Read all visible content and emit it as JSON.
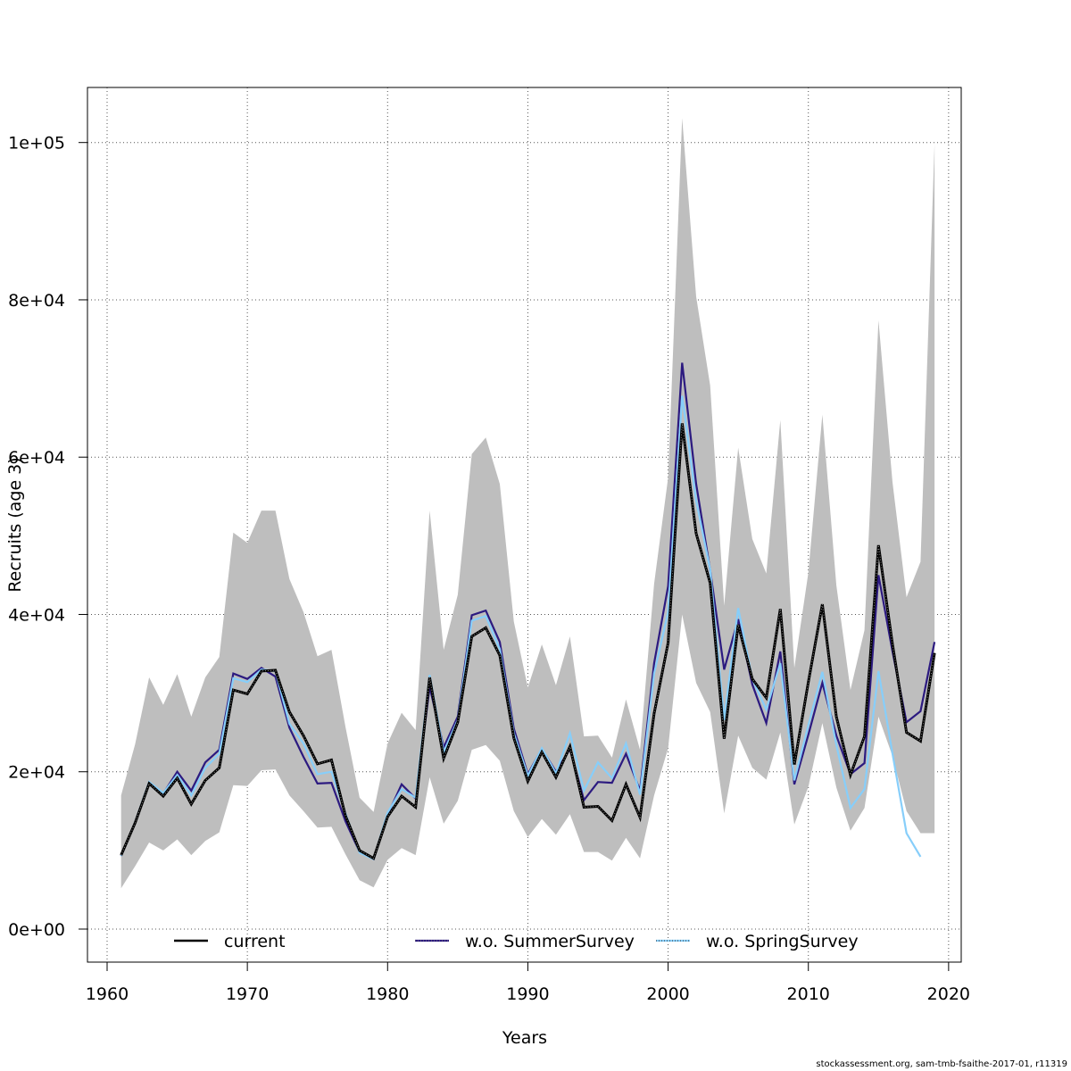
{
  "chart_data": {
    "type": "line",
    "xlabel": "Years",
    "ylabel": "Recruits (age 3)",
    "xlim": [
      1958.6,
      2020.9
    ],
    "ylim": [
      -4200,
      107000
    ],
    "x_ticks": [
      1960,
      1970,
      1980,
      1990,
      2000,
      2010,
      2020
    ],
    "x_tick_labels": [
      "1960",
      "1970",
      "1980",
      "1990",
      "2000",
      "2010",
      "2020"
    ],
    "y_ticks": [
      0,
      20000,
      40000,
      60000,
      80000,
      100000
    ],
    "y_tick_labels": [
      "0e+00",
      "2e+04",
      "4e+04",
      "6e+04",
      "8e+04",
      "1e+05"
    ],
    "grid": true,
    "legend_position": "bottom",
    "band_color": "#bebebe",
    "confidence_band": {
      "x": [
        1961,
        1962,
        1963,
        1964,
        1965,
        1966,
        1967,
        1968,
        1969,
        1970,
        1971,
        1972,
        1973,
        1974,
        1975,
        1976,
        1977,
        1978,
        1979,
        1980,
        1981,
        1982,
        1983,
        1984,
        1985,
        1986,
        1987,
        1988,
        1989,
        1990,
        1991,
        1992,
        1993,
        1994,
        1995,
        1996,
        1997,
        1998,
        1999,
        2000,
        2001,
        2002,
        2003,
        2004,
        2005,
        2006,
        2007,
        2008,
        2009,
        2010,
        2011,
        2012,
        2013,
        2014,
        2015,
        2016,
        2017,
        2018,
        2019
      ],
      "lower": [
        5200,
        8000,
        11000,
        10000,
        11400,
        9400,
        11200,
        12300,
        18300,
        18200,
        20200,
        20300,
        17000,
        15000,
        12900,
        13000,
        9500,
        6200,
        5300,
        8800,
        10300,
        9400,
        19300,
        13400,
        16300,
        22800,
        23400,
        21400,
        15000,
        11700,
        14000,
        12000,
        14600,
        9800,
        9800,
        8700,
        11600,
        9000,
        17000,
        23000,
        40000,
        31300,
        27600,
        14700,
        24600,
        20500,
        19000,
        25000,
        13300,
        18100,
        26200,
        18000,
        12500,
        15400,
        27000,
        22000,
        15000,
        12200,
        12200
      ],
      "upper": [
        17000,
        23500,
        32000,
        28500,
        32400,
        27000,
        32000,
        34600,
        50400,
        49100,
        53200,
        53200,
        44500,
        40300,
        34700,
        35500,
        25700,
        16700,
        14900,
        23600,
        27500,
        25300,
        53200,
        35500,
        42500,
        60400,
        62500,
        56600,
        39100,
        30700,
        36200,
        31000,
        37200,
        24500,
        24600,
        21800,
        29200,
        22800,
        43900,
        57400,
        103100,
        80400,
        69100,
        41100,
        61200,
        49600,
        45200,
        64700,
        33200,
        45300,
        65400,
        43700,
        30400,
        38000,
        77400,
        56800,
        42200,
        46700,
        99800
      ]
    },
    "series": [
      {
        "name": "current",
        "color": "#000000",
        "dash": "solid",
        "values": [
          9400,
          13500,
          18500,
          16900,
          19200,
          15900,
          18900,
          20500,
          30400,
          29900,
          32800,
          32900,
          27600,
          24600,
          21000,
          21500,
          14400,
          10000,
          9000,
          14300,
          16900,
          15500,
          32000,
          21700,
          26300,
          37200,
          38300,
          34800,
          24300,
          18800,
          22500,
          19300,
          23200,
          15500,
          15600,
          13800,
          18400,
          14200,
          27400,
          36400,
          64300,
          50300,
          44000,
          24200,
          38700,
          31800,
          29400,
          40700,
          20900,
          31400,
          41300,
          27000,
          19600,
          24500,
          48800,
          36200,
          25000,
          23900,
          35100
        ]
      },
      {
        "name": "w.o. SummerSurvey",
        "color": "#2c1a80",
        "dash": "solid",
        "values": [
          9300,
          13500,
          18500,
          17200,
          20000,
          17600,
          21200,
          22800,
          32500,
          31800,
          33200,
          32100,
          25600,
          21900,
          18500,
          18600,
          13700,
          9800,
          8900,
          14500,
          18400,
          16600,
          30800,
          23100,
          27000,
          39900,
          40500,
          36500,
          25500,
          19700,
          22900,
          20000,
          22900,
          16400,
          18700,
          18600,
          22300,
          17600,
          33800,
          43600,
          72000,
          56600,
          45600,
          33000,
          39400,
          31100,
          26200,
          35300,
          18400,
          24700,
          31300,
          24600,
          19700,
          21100,
          45000,
          35300,
          26300,
          27700,
          36500
        ]
      },
      {
        "name": "w.o. SpringSurvey",
        "color": "#87cefa",
        "dash": "dotted",
        "values": [
          9300,
          13600,
          18700,
          17300,
          19600,
          17000,
          20500,
          22300,
          31900,
          31400,
          33000,
          32800,
          26100,
          23600,
          19700,
          20000,
          14700,
          9700,
          8900,
          14800,
          17800,
          16700,
          32300,
          22500,
          26600,
          39200,
          39800,
          35600,
          24900,
          19500,
          23000,
          19800,
          24900,
          17600,
          21200,
          19200,
          23600,
          17100,
          32500,
          40300,
          67800,
          54500,
          45700,
          26600,
          40800,
          31800,
          27900,
          33800,
          18900,
          25900,
          32700,
          23400,
          15400,
          17800,
          32800,
          22300,
          12200,
          9200,
          null
        ]
      }
    ]
  },
  "credit": "stockassessment.org, sam-tmb-fsaithe-2017-01, r11319"
}
